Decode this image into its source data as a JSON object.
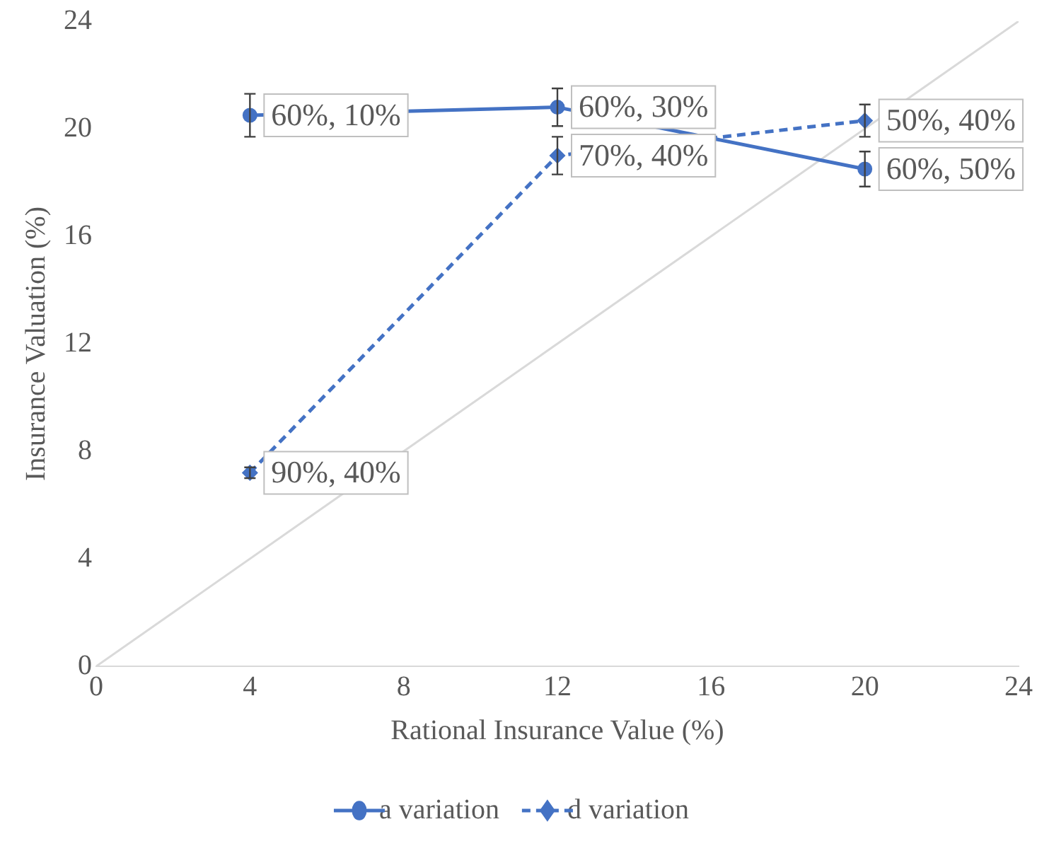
{
  "chart_data": {
    "type": "line",
    "xlabel": "Rational Insurance Value (%)",
    "ylabel": "Insurance Valuation (%)",
    "xlim": [
      0,
      24
    ],
    "xticks": [
      0,
      4,
      8,
      12,
      16,
      20,
      24
    ],
    "ylim": [
      0,
      24
    ],
    "yticks": [
      0,
      4,
      8,
      12,
      16,
      20,
      24
    ],
    "grid": false,
    "legend": "bottom",
    "series": [
      {
        "name": "a variation",
        "color": "#4472c4",
        "x": [
          4,
          12,
          20
        ],
        "values": [
          20.5,
          20.8,
          18.5
        ],
        "errors": [
          0.8,
          0.7,
          0.65
        ],
        "marker": "circle",
        "line_style": "solid"
      },
      {
        "name": "d variation",
        "color": "#4472c4",
        "x": [
          4,
          12,
          20
        ],
        "values": [
          7.2,
          19.0,
          20.3
        ],
        "errors": [
          0.2,
          0.7,
          0.6
        ],
        "marker": "diamond",
        "line_style": "dashed"
      },
      {
        "type": "line",
        "color": "#d9d9d9",
        "x": [
          0,
          24
        ],
        "values": [
          0,
          24
        ],
        "marker": "none",
        "line_style": "solid"
      }
    ],
    "annotations": [
      {
        "text": "60%, 10%",
        "x": 4,
        "y": 20.5
      },
      {
        "text": "60%, 30%",
        "x": 12,
        "y": 20.8
      },
      {
        "text": "60%, 50%",
        "x": 20,
        "y": 18.5
      },
      {
        "text": "90%, 40%",
        "x": 4,
        "y": 7.2
      },
      {
        "text": "70%, 40%",
        "x": 12,
        "y": 19.0
      },
      {
        "text": "50%, 40%",
        "x": 20,
        "y": 20.3
      }
    ]
  }
}
